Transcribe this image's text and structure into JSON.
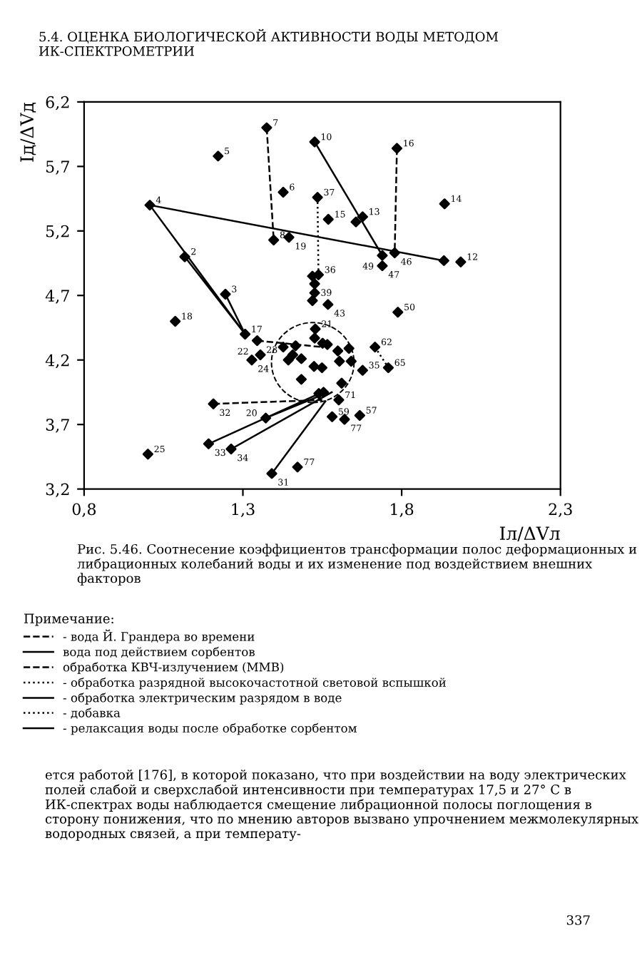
{
  "chart_data": {
    "type": "scatter",
    "title": "5.4. ОЦЕНКА БИОЛОГИЧЕСКОЙ АКТИВНОСТИ ВОДЫ МЕТОДОМ ИК-СПЕКТРОМЕТРИИ",
    "xlabel": "Iл/ΔVл",
    "ylabel": "Iд/ΔVд",
    "legend_title": "Примечание:",
    "xlim": [
      0.8,
      2.3
    ],
    "ylim": [
      3.2,
      6.2
    ],
    "xticks": [
      {
        "value": 0.8,
        "label": "0,8"
      },
      {
        "value": 1.3,
        "label": "1,3"
      },
      {
        "value": 1.8,
        "label": "1,8"
      },
      {
        "value": 2.3,
        "label": "2,3"
      }
    ],
    "yticks": [
      {
        "value": 3.2,
        "label": "3,2"
      },
      {
        "value": 3.7,
        "label": "3,7"
      },
      {
        "value": 4.2,
        "label": "4,2"
      },
      {
        "value": 4.7,
        "label": "4,7"
      },
      {
        "value": 5.2,
        "label": "5,2"
      },
      {
        "value": 5.7,
        "label": "5,7"
      },
      {
        "value": 6.2,
        "label": "6,2"
      }
    ],
    "grid": false,
    "legend": "bottom",
    "marker": "diamond",
    "series": [
      {
        "color": "#000000",
        "x": [
          1.375,
          1.222,
          1.526,
          1.427,
          1.535,
          1.569,
          1.007,
          1.397,
          1.445,
          1.117,
          1.538,
          1.519,
          1.526,
          1.526,
          1.245,
          1.568,
          1.519,
          1.087,
          1.307,
          1.528,
          1.207,
          1.372,
          1.192,
          1.263,
          1.001,
          1.391,
          1.472,
          1.328,
          1.355,
          1.345,
          1.785,
          1.935,
          1.677,
          1.656,
          1.778,
          1.986,
          1.933,
          1.739,
          1.739,
          1.788,
          1.716,
          1.758,
          1.677,
          1.668,
          1.581,
          1.62,
          1.602,
          1.611,
          1.554,
          1.604,
          1.641,
          1.599,
          1.549,
          1.634,
          1.566,
          1.427,
          1.466,
          1.526,
          1.551,
          1.457,
          1.443,
          1.484,
          1.524,
          1.484,
          1.539
        ],
        "values": [
          6.0,
          5.78,
          5.89,
          5.5,
          5.46,
          5.29,
          5.4,
          5.13,
          5.15,
          5.0,
          4.86,
          4.85,
          4.79,
          4.72,
          4.71,
          4.63,
          4.66,
          4.5,
          4.4,
          4.44,
          3.86,
          3.75,
          3.55,
          3.51,
          3.47,
          3.32,
          3.37,
          4.2,
          4.24,
          4.35,
          5.84,
          5.41,
          5.31,
          5.27,
          5.03,
          4.96,
          4.97,
          5.01,
          4.93,
          4.57,
          4.3,
          4.14,
          4.12,
          3.77,
          3.76,
          3.74,
          3.89,
          4.02,
          3.95,
          4.19,
          4.19,
          4.27,
          4.14,
          4.29,
          4.32,
          4.3,
          4.31,
          4.37,
          4.33,
          4.24,
          4.2,
          4.21,
          4.15,
          4.05,
          3.94
        ]
      },
      {
        "type": "line",
        "name": "- вода Й. Грандера во времени",
        "color": "#000000",
        "line_style": "dashed",
        "marker": "none",
        "x": [
          1.375,
          1.397,
          null,
          1.785,
          1.778,
          null,
          1.207,
          1.55
        ],
        "values": [
          6.0,
          5.13,
          null,
          5.84,
          5.03,
          null,
          3.86,
          3.89
        ]
      },
      {
        "type": "line",
        "name": "вода под действием сорбентов",
        "color": "#000000",
        "line_style": "solid",
        "marker": "none",
        "x": [
          1.007,
          1.933,
          null,
          1.007,
          1.307,
          null,
          1.117,
          1.307,
          null,
          1.245,
          1.307
        ],
        "values": [
          5.4,
          4.97,
          null,
          5.4,
          4.4,
          null,
          5.0,
          4.4,
          null,
          4.71,
          4.4
        ]
      },
      {
        "type": "line",
        "name": "обработка КВЧ-излучением (ММВ)",
        "color": "#000000",
        "line_style": "dashed",
        "marker": "none",
        "x": [
          1.345,
          1.55
        ],
        "values": [
          4.35,
          4.3
        ]
      },
      {
        "type": "line",
        "name": "- обработка разрядной высокочастотной световой вспышкой",
        "color": "#000000",
        "line_style": "dotted",
        "marker": "none",
        "x": [
          1.716,
          1.758
        ],
        "values": [
          4.3,
          4.14
        ]
      },
      {
        "type": "line",
        "name": "- обработка электрическим разрядом в воде",
        "color": "#000000",
        "line_style": "solid",
        "marker": "none",
        "x": [
          1.526,
          1.739
        ],
        "values": [
          5.89,
          5.01
        ]
      },
      {
        "type": "line",
        "name": "- добавка",
        "color": "#000000",
        "line_style": "dotted",
        "marker": "none",
        "x": [
          1.538,
          1.535
        ],
        "values": [
          4.86,
          5.46
        ]
      },
      {
        "type": "line",
        "name": "- релаксация воды после обработке сорбентом",
        "color": "#000000",
        "line_style": "solid",
        "marker": "none",
        "x": [
          1.192,
          1.55,
          null,
          1.263,
          1.58,
          null,
          1.372,
          1.55,
          null,
          1.391,
          1.56
        ],
        "values": [
          3.55,
          3.95,
          null,
          3.51,
          3.95,
          null,
          3.75,
          3.93,
          null,
          3.32,
          3.88
        ]
      }
    ],
    "annotations": [
      {
        "text": "7",
        "x": 1.375,
        "y": 6.0
      },
      {
        "text": "5",
        "x": 1.222,
        "y": 5.78
      },
      {
        "text": "10",
        "x": 1.526,
        "y": 5.89
      },
      {
        "text": "6",
        "x": 1.427,
        "y": 5.5
      },
      {
        "text": "37",
        "x": 1.535,
        "y": 5.46
      },
      {
        "text": "15",
        "x": 1.569,
        "y": 5.29
      },
      {
        "text": "4",
        "x": 1.007,
        "y": 5.4
      },
      {
        "text": "8",
        "x": 1.397,
        "y": 5.13
      },
      {
        "text": "19",
        "x": 1.445,
        "y": 5.15
      },
      {
        "text": "2",
        "x": 1.117,
        "y": 5.0
      },
      {
        "text": "36",
        "x": 1.538,
        "y": 4.86
      },
      {
        "text": "39",
        "x": 1.526,
        "y": 4.79
      },
      {
        "text": "3",
        "x": 1.245,
        "y": 4.71
      },
      {
        "text": "43",
        "x": 1.568,
        "y": 4.63
      },
      {
        "text": "18",
        "x": 1.087,
        "y": 4.5
      },
      {
        "text": "17",
        "x": 1.307,
        "y": 4.4
      },
      {
        "text": "21",
        "x": 1.528,
        "y": 4.44
      },
      {
        "text": "32",
        "x": 1.207,
        "y": 3.86
      },
      {
        "text": "20",
        "x": 1.372,
        "y": 3.75
      },
      {
        "text": "33",
        "x": 1.192,
        "y": 3.55
      },
      {
        "text": "34",
        "x": 1.263,
        "y": 3.51
      },
      {
        "text": "25",
        "x": 1.001,
        "y": 3.47
      },
      {
        "text": "31",
        "x": 1.391,
        "y": 3.32
      },
      {
        "text": "77",
        "x": 1.472,
        "y": 3.37
      },
      {
        "text": "24",
        "x": 1.328,
        "y": 4.2
      },
      {
        "text": "23",
        "x": 1.355,
        "y": 4.24
      },
      {
        "text": "22",
        "x": 1.345,
        "y": 4.35
      },
      {
        "text": "16",
        "x": 1.785,
        "y": 5.84
      },
      {
        "text": "14",
        "x": 1.935,
        "y": 5.41
      },
      {
        "text": "13",
        "x": 1.677,
        "y": 5.31
      },
      {
        "text": "46",
        "x": 1.778,
        "y": 5.03
      },
      {
        "text": "12",
        "x": 1.986,
        "y": 4.96
      },
      {
        "text": "49",
        "x": 1.739,
        "y": 5.01
      },
      {
        "text": "47",
        "x": 1.739,
        "y": 4.93
      },
      {
        "text": "50",
        "x": 1.788,
        "y": 4.57
      },
      {
        "text": "62",
        "x": 1.716,
        "y": 4.3
      },
      {
        "text": "65",
        "x": 1.758,
        "y": 4.14
      },
      {
        "text": "35",
        "x": 1.677,
        "y": 4.12
      },
      {
        "text": "57",
        "x": 1.668,
        "y": 3.77
      },
      {
        "text": "59",
        "x": 1.581,
        "y": 3.76
      },
      {
        "text": "77",
        "x": 1.62,
        "y": 3.74
      },
      {
        "text": "71",
        "x": 1.602,
        "y": 3.89
      },
      "Рис. 5.46. Соотнесение коэффициентов трансформации полос деформационных и либрационных колебаний воды и их изменение под воздействием внешних факторов",
      "ется работой [176], в которой показано, что при воздействии на воду электрических полей слабой и сверхслабой интенсивности при температурах 17,5 и 27° С в ИК-спектрах воды наблюдается смещение либрационной полосы поглощения в сторону понижения, что по мнению авторов вызвано упрочнением межмолекулярных водородных связей, а при температу-",
      "337"
    ]
  }
}
